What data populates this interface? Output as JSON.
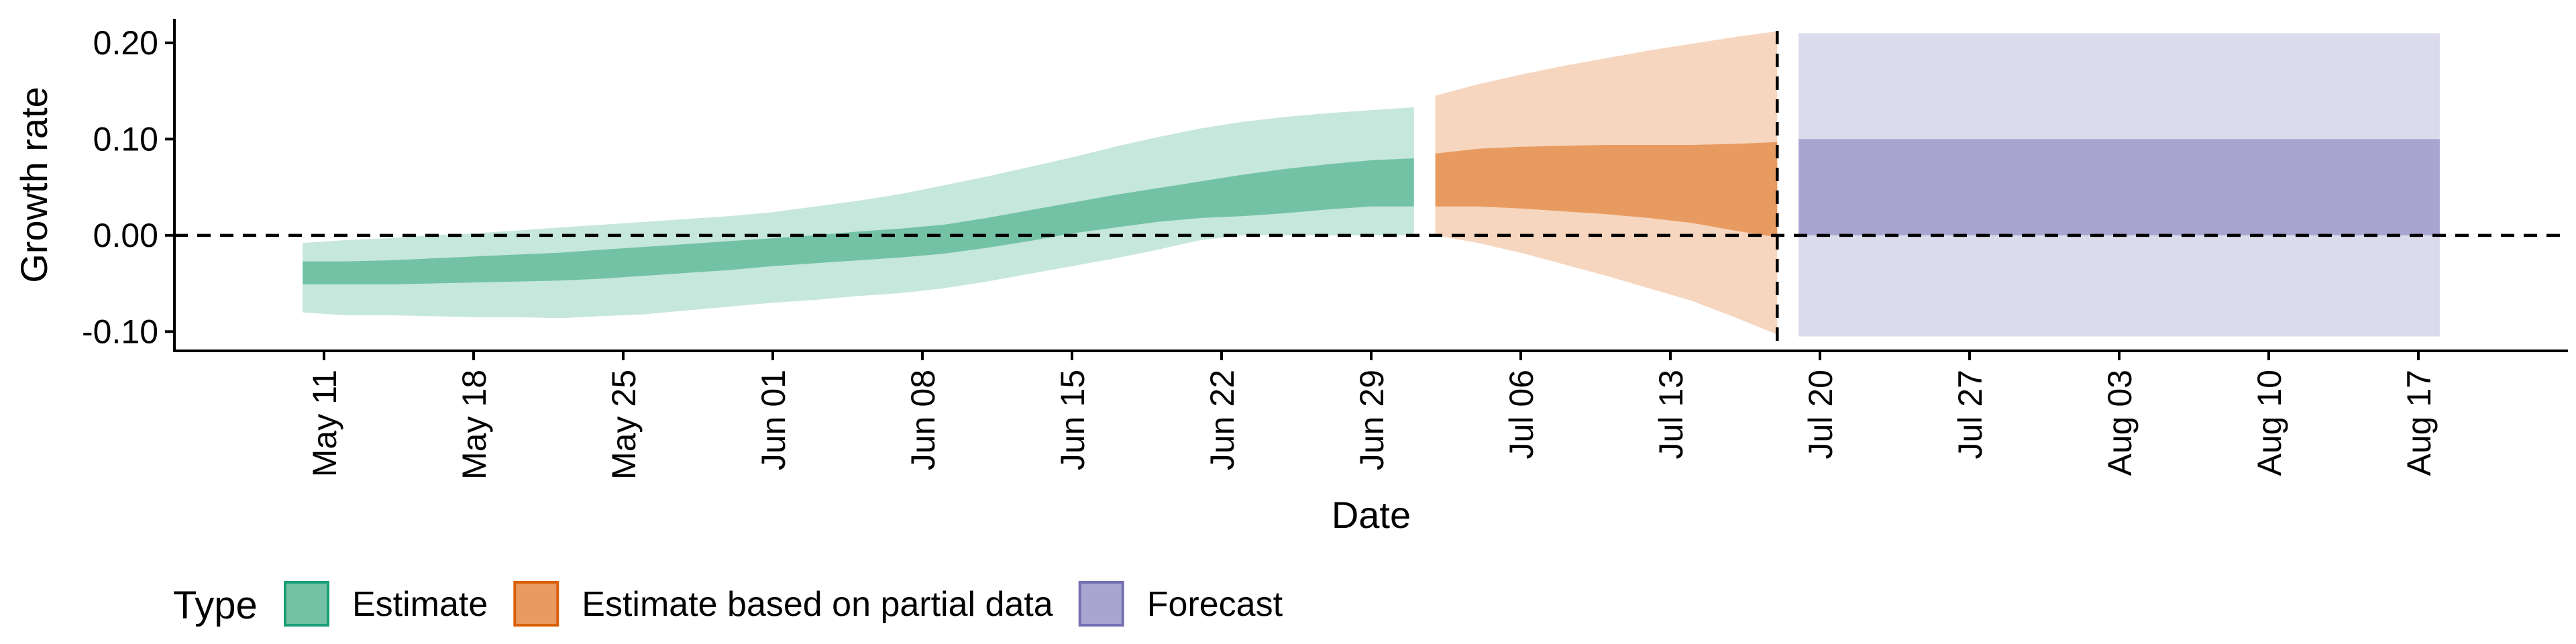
{
  "chart_data": {
    "type": "area",
    "xlabel": "Date",
    "ylabel": "Growth rate",
    "ylim": [
      -0.12,
      0.225
    ],
    "xlim": [
      "2020-05-04",
      "2020-08-24"
    ],
    "y_ticks": [
      -0.1,
      0.0,
      0.1,
      0.2
    ],
    "y_tick_labels": [
      "-0.10",
      "0.00",
      "0.10",
      "0.20"
    ],
    "x_ticks": [
      "2020-05-11",
      "2020-05-18",
      "2020-05-25",
      "2020-06-01",
      "2020-06-08",
      "2020-06-15",
      "2020-06-22",
      "2020-06-29",
      "2020-07-06",
      "2020-07-13",
      "2020-07-20",
      "2020-07-27",
      "2020-08-03",
      "2020-08-10",
      "2020-08-17"
    ],
    "x_tick_labels": [
      "May 11",
      "May 18",
      "May 25",
      "Jun 01",
      "Jun 08",
      "Jun 15",
      "Jun 22",
      "Jun 29",
      "Jul 06",
      "Jul 13",
      "Jul 20",
      "Jul 27",
      "Aug 03",
      "Aug 10",
      "Aug 17"
    ],
    "reference_lines": {
      "horizontal_y": 0,
      "vertical_x": "2020-07-18"
    },
    "grid": false,
    "legend": {
      "title": "Type",
      "position": "bottom"
    },
    "colors": {
      "Estimate": {
        "inner": "#73C2A6",
        "outer": "#C6E7DC",
        "border": "#1B9E77"
      },
      "Estimate based on partial data": {
        "inner": "#E89B61",
        "outer": "#F6D6BE",
        "border": "#D95F02"
      },
      "Forecast": {
        "inner": "#A8A5D1",
        "outer": "#DCDBEC",
        "border": "#7570B3"
      }
    },
    "series": [
      {
        "name": "Estimate",
        "x": [
          "2020-05-10",
          "2020-05-12",
          "2020-05-14",
          "2020-05-16",
          "2020-05-18",
          "2020-05-20",
          "2020-05-22",
          "2020-05-24",
          "2020-05-26",
          "2020-05-28",
          "2020-05-30",
          "2020-06-01",
          "2020-06-03",
          "2020-06-05",
          "2020-06-07",
          "2020-06-09",
          "2020-06-11",
          "2020-06-13",
          "2020-06-15",
          "2020-06-17",
          "2020-06-19",
          "2020-06-21",
          "2020-06-23",
          "2020-06-25",
          "2020-06-27",
          "2020-06-29",
          "2020-07-01"
        ],
        "outer_lower": [
          -0.08,
          -0.083,
          -0.083,
          -0.084,
          -0.085,
          -0.085,
          -0.086,
          -0.084,
          -0.082,
          -0.078,
          -0.074,
          -0.07,
          -0.067,
          -0.063,
          -0.06,
          -0.055,
          -0.048,
          -0.04,
          -0.032,
          -0.024,
          -0.015,
          -0.005,
          0.0,
          0.0,
          0.0,
          0.0,
          0.0
        ],
        "inner_lower": [
          -0.051,
          -0.051,
          -0.051,
          -0.05,
          -0.049,
          -0.048,
          -0.047,
          -0.045,
          -0.042,
          -0.039,
          -0.036,
          -0.032,
          -0.029,
          -0.026,
          -0.023,
          -0.019,
          -0.013,
          -0.006,
          0.002,
          0.008,
          0.014,
          0.018,
          0.02,
          0.023,
          0.027,
          0.03,
          0.03
        ],
        "inner_upper": [
          -0.027,
          -0.027,
          -0.026,
          -0.024,
          -0.022,
          -0.02,
          -0.018,
          -0.015,
          -0.012,
          -0.009,
          -0.006,
          -0.003,
          0.0,
          0.004,
          0.007,
          0.011,
          0.018,
          0.026,
          0.034,
          0.042,
          0.049,
          0.056,
          0.063,
          0.069,
          0.074,
          0.078,
          0.08
        ],
        "outer_upper": [
          -0.008,
          -0.005,
          -0.003,
          0.0,
          0.002,
          0.005,
          0.008,
          0.011,
          0.014,
          0.017,
          0.02,
          0.024,
          0.03,
          0.036,
          0.043,
          0.052,
          0.061,
          0.071,
          0.081,
          0.092,
          0.102,
          0.111,
          0.118,
          0.123,
          0.127,
          0.13,
          0.133
        ]
      },
      {
        "name": "Estimate based on partial data",
        "x": [
          "2020-07-02",
          "2020-07-04",
          "2020-07-06",
          "2020-07-08",
          "2020-07-10",
          "2020-07-12",
          "2020-07-14",
          "2020-07-16",
          "2020-07-18"
        ],
        "outer_lower": [
          0.0,
          -0.008,
          -0.018,
          -0.03,
          -0.042,
          -0.055,
          -0.068,
          -0.085,
          -0.103
        ],
        "inner_lower": [
          0.03,
          0.03,
          0.028,
          0.025,
          0.022,
          0.018,
          0.013,
          0.005,
          -0.002
        ],
        "inner_upper": [
          0.085,
          0.09,
          0.092,
          0.093,
          0.094,
          0.094,
          0.094,
          0.095,
          0.097
        ],
        "outer_upper": [
          0.145,
          0.157,
          0.167,
          0.176,
          0.184,
          0.192,
          0.199,
          0.206,
          0.212
        ]
      },
      {
        "name": "Forecast",
        "x": [
          "2020-07-19",
          "2020-08-18"
        ],
        "outer_lower": [
          -0.105,
          -0.105
        ],
        "inner_lower": [
          0.0,
          0.0
        ],
        "inner_upper": [
          0.1,
          0.1
        ],
        "outer_upper": [
          0.21,
          0.21
        ]
      }
    ]
  }
}
